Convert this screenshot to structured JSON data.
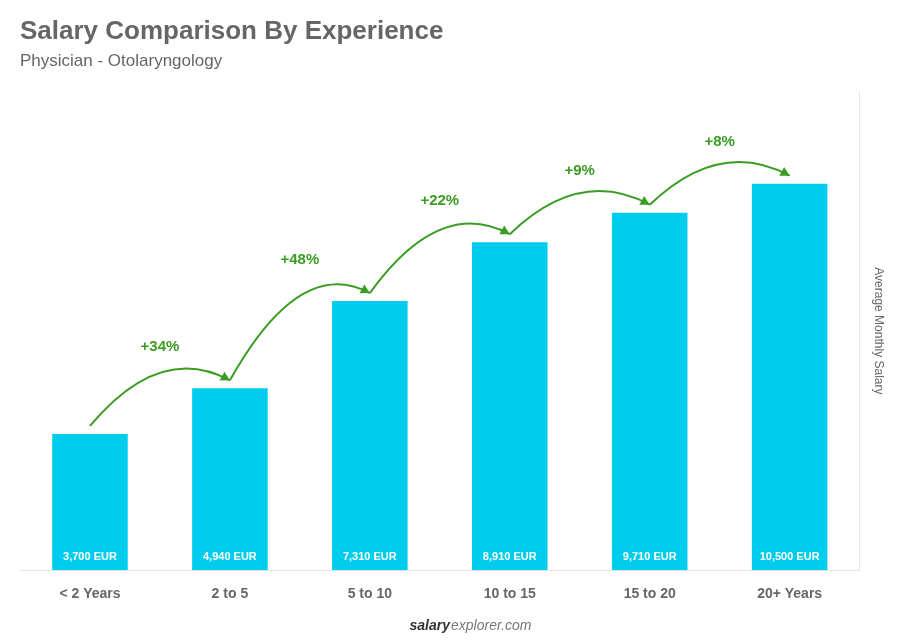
{
  "chart_data": {
    "type": "bar",
    "title": "Salary Comparison By Experience",
    "subtitle": "Physician - Otolaryngology",
    "ylabel": "Average Monthly Salary",
    "categories": [
      "< 2 Years",
      "2 to 5",
      "5 to 10",
      "10 to 15",
      "15 to 20",
      "20+ Years"
    ],
    "values": [
      3700,
      4940,
      7310,
      8910,
      9710,
      10500
    ],
    "value_labels": [
      "3,700 EUR",
      "4,940 EUR",
      "7,310 EUR",
      "8,910 EUR",
      "9,710 EUR",
      "10,500 EUR"
    ],
    "data_labels": true,
    "color": "#00ccee",
    "ylim": [
      0,
      13000
    ],
    "tick_labels": "x",
    "grid": false,
    "annotations": [
      "+34%",
      "+48%",
      "+22%",
      "+9%",
      "+8%"
    ],
    "footer": [
      "salary",
      "explorer.com"
    ]
  }
}
